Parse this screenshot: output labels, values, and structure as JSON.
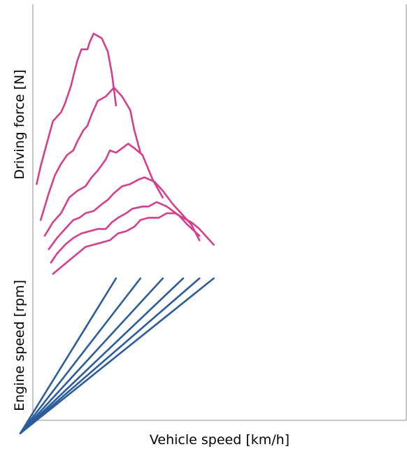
{
  "chart_data": [
    {
      "type": "line",
      "panel": "top",
      "ylabel": "Driving force [N]",
      "xlabel": "Vehicle speed [km/h]",
      "color": "#d43f8d",
      "axes": {
        "grid": false,
        "tick_labels": false
      },
      "series": [
        {
          "points": [
            [
              0.09,
              0.59
            ],
            [
              0.1,
              0.63
            ],
            [
              0.115,
              0.68
            ],
            [
              0.13,
              0.73
            ],
            [
              0.15,
              0.75
            ],
            [
              0.16,
              0.77
            ],
            [
              0.175,
              0.81
            ],
            [
              0.18,
              0.83
            ],
            [
              0.19,
              0.865
            ],
            [
              0.2,
              0.89
            ],
            [
              0.215,
              0.89
            ],
            [
              0.22,
              0.905
            ],
            [
              0.23,
              0.925
            ],
            [
              0.25,
              0.915
            ],
            [
              0.265,
              0.885
            ],
            [
              0.275,
              0.835
            ],
            [
              0.285,
              0.765
            ]
          ]
        },
        {
          "points": [
            [
              0.1,
              0.51
            ],
            [
              0.12,
              0.57
            ],
            [
              0.135,
              0.61
            ],
            [
              0.15,
              0.635
            ],
            [
              0.165,
              0.655
            ],
            [
              0.18,
              0.665
            ],
            [
              0.19,
              0.685
            ],
            [
              0.205,
              0.71
            ],
            [
              0.215,
              0.72
            ],
            [
              0.225,
              0.745
            ],
            [
              0.24,
              0.775
            ],
            [
              0.26,
              0.785
            ],
            [
              0.28,
              0.805
            ],
            [
              0.3,
              0.785
            ],
            [
              0.32,
              0.755
            ],
            [
              0.33,
              0.71
            ],
            [
              0.345,
              0.66
            ]
          ]
        },
        {
          "points": [
            [
              0.11,
              0.475
            ],
            [
              0.13,
              0.505
            ],
            [
              0.15,
              0.525
            ],
            [
              0.17,
              0.56
            ],
            [
              0.19,
              0.575
            ],
            [
              0.21,
              0.585
            ],
            [
              0.225,
              0.605
            ],
            [
              0.24,
              0.62
            ],
            [
              0.26,
              0.645
            ],
            [
              0.27,
              0.665
            ],
            [
              0.285,
              0.66
            ],
            [
              0.3,
              0.67
            ],
            [
              0.315,
              0.68
            ],
            [
              0.33,
              0.67
            ],
            [
              0.35,
              0.655
            ],
            [
              0.375,
              0.6
            ],
            [
              0.4,
              0.56
            ]
          ]
        },
        {
          "points": [
            [
              0.12,
              0.445
            ],
            [
              0.14,
              0.47
            ],
            [
              0.16,
              0.49
            ],
            [
              0.18,
              0.51
            ],
            [
              0.195,
              0.515
            ],
            [
              0.21,
              0.525
            ],
            [
              0.23,
              0.53
            ],
            [
              0.25,
              0.545
            ],
            [
              0.265,
              0.555
            ],
            [
              0.28,
              0.57
            ],
            [
              0.3,
              0.585
            ],
            [
              0.32,
              0.59
            ],
            [
              0.34,
              0.6
            ],
            [
              0.355,
              0.605
            ],
            [
              0.38,
              0.595
            ],
            [
              0.4,
              0.575
            ],
            [
              0.425,
              0.545
            ],
            [
              0.445,
              0.525
            ],
            [
              0.47,
              0.5
            ],
            [
              0.49,
              0.465
            ]
          ]
        },
        {
          "points": [
            [
              0.125,
              0.415
            ],
            [
              0.14,
              0.435
            ],
            [
              0.16,
              0.455
            ],
            [
              0.18,
              0.47
            ],
            [
              0.2,
              0.48
            ],
            [
              0.22,
              0.485
            ],
            [
              0.24,
              0.49
            ],
            [
              0.26,
              0.49
            ],
            [
              0.275,
              0.505
            ],
            [
              0.29,
              0.515
            ],
            [
              0.31,
              0.525
            ],
            [
              0.325,
              0.535
            ],
            [
              0.35,
              0.54
            ],
            [
              0.365,
              0.54
            ],
            [
              0.385,
              0.55
            ],
            [
              0.41,
              0.54
            ],
            [
              0.44,
              0.52
            ],
            [
              0.46,
              0.5
            ],
            [
              0.49,
              0.475
            ]
          ]
        },
        {
          "points": [
            [
              0.13,
              0.39
            ],
            [
              0.15,
              0.405
            ],
            [
              0.17,
              0.42
            ],
            [
              0.19,
              0.435
            ],
            [
              0.21,
              0.45
            ],
            [
              0.23,
              0.455
            ],
            [
              0.25,
              0.46
            ],
            [
              0.27,
              0.465
            ],
            [
              0.29,
              0.48
            ],
            [
              0.31,
              0.485
            ],
            [
              0.33,
              0.495
            ],
            [
              0.345,
              0.51
            ],
            [
              0.365,
              0.515
            ],
            [
              0.39,
              0.515
            ],
            [
              0.41,
              0.525
            ],
            [
              0.43,
              0.525
            ],
            [
              0.45,
              0.515
            ],
            [
              0.47,
              0.505
            ],
            [
              0.49,
              0.49
            ],
            [
              0.51,
              0.47
            ],
            [
              0.525,
              0.455
            ]
          ]
        }
      ]
    },
    {
      "type": "line",
      "panel": "bottom",
      "ylabel": "Engine speed [rpm]",
      "xlabel": "Vehicle speed [km/h]",
      "color": "#2b5c9c",
      "axes": {
        "grid": false,
        "tick_labels": false
      },
      "series": [
        {
          "points": [
            [
              0.05,
              0.035
            ],
            [
              0.285,
              0.38
            ]
          ]
        },
        {
          "points": [
            [
              0.05,
              0.035
            ],
            [
              0.345,
              0.38
            ]
          ]
        },
        {
          "points": [
            [
              0.05,
              0.035
            ],
            [
              0.4,
              0.38
            ]
          ]
        },
        {
          "points": [
            [
              0.05,
              0.035
            ],
            [
              0.45,
              0.38
            ]
          ]
        },
        {
          "points": [
            [
              0.05,
              0.035
            ],
            [
              0.49,
              0.38
            ]
          ]
        },
        {
          "points": [
            [
              0.05,
              0.035
            ],
            [
              0.525,
              0.38
            ]
          ]
        }
      ]
    }
  ]
}
